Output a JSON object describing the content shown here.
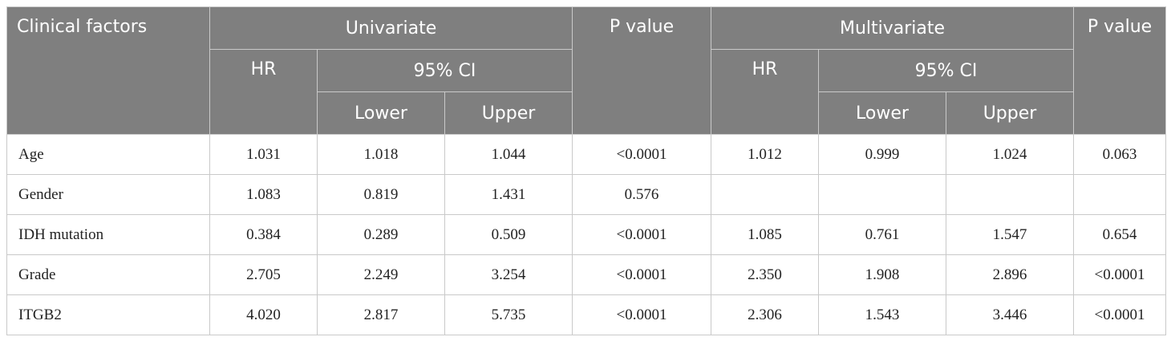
{
  "header": {
    "clinical_factors": "Clinical factors",
    "univariate": "Univariate",
    "multivariate": "Multivariate",
    "p_value": "P value",
    "hr": "HR",
    "ci": "95% CI",
    "lower": "Lower",
    "upper": "Upper"
  },
  "rows": [
    {
      "factor": "Age",
      "uni_hr": "1.031",
      "uni_lower": "1.018",
      "uni_upper": "1.044",
      "uni_p": "<0.0001",
      "multi_hr": "1.012",
      "multi_lower": "0.999",
      "multi_upper": "1.024",
      "multi_p": "0.063"
    },
    {
      "factor": "Gender",
      "uni_hr": "1.083",
      "uni_lower": "0.819",
      "uni_upper": "1.431",
      "uni_p": "0.576",
      "multi_hr": "",
      "multi_lower": "",
      "multi_upper": "",
      "multi_p": ""
    },
    {
      "factor": "IDH mutation",
      "uni_hr": "0.384",
      "uni_lower": "0.289",
      "uni_upper": "0.509",
      "uni_p": "<0.0001",
      "multi_hr": "1.085",
      "multi_lower": "0.761",
      "multi_upper": "1.547",
      "multi_p": "0.654"
    },
    {
      "factor": "Grade",
      "uni_hr": "2.705",
      "uni_lower": "2.249",
      "uni_upper": "3.254",
      "uni_p": "<0.0001",
      "multi_hr": "2.350",
      "multi_lower": "1.908",
      "multi_upper": "2.896",
      "multi_p": "<0.0001"
    },
    {
      "factor": "ITGB2",
      "uni_hr": "4.020",
      "uni_lower": "2.817",
      "uni_upper": "5.735",
      "uni_p": "<0.0001",
      "multi_hr": "2.306",
      "multi_lower": "1.543",
      "multi_upper": "3.446",
      "multi_p": "<0.0001"
    }
  ]
}
